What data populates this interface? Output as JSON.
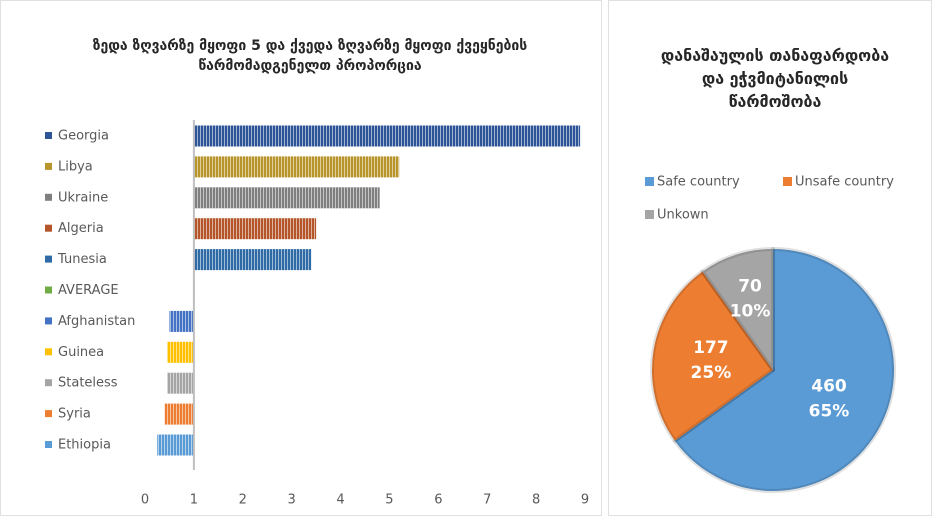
{
  "chart_data": [
    {
      "type": "hbar",
      "title": "ზედა ზღვარზე მყოფი 5 და ქვედა ზღვარზე მყოფი ქვეყნების წარმომადგენელთ პროპორცია",
      "categories": [
        "Georgia",
        "Libya",
        "Ukraine",
        "Algeria",
        "Tunesia",
        "AVERAGE",
        "Afghanistan",
        "Guinea",
        "Stateless",
        "Syria",
        "Ethiopia"
      ],
      "values": [
        8.9,
        5.2,
        4.8,
        3.5,
        3.4,
        1,
        0.5,
        0.45,
        0.45,
        0.4,
        0.25
      ],
      "colors": [
        "#2e5597",
        "#b8952a",
        "#7f7f7f",
        "#b5562a",
        "#2e6aa6",
        "#70ad47",
        "#4472c4",
        "#ffc000",
        "#a5a5a5",
        "#ed7d31",
        "#5b9bd5"
      ],
      "origin": 1,
      "xlim": [
        0,
        9
      ],
      "xticks": [
        0,
        1,
        2,
        3,
        4,
        5,
        6,
        7,
        8,
        9
      ]
    },
    {
      "type": "pie",
      "title": "დანაშაულის თანაფარდობა და ეჭვმიტანილის წარმოშობა",
      "categories": [
        "Safe country",
        "Unsafe country",
        "Unkown"
      ],
      "values": [
        460,
        177,
        70
      ],
      "percents": [
        65,
        25,
        10
      ],
      "value_labels": [
        "65%",
        "25%",
        "10%"
      ],
      "colors": [
        "#5b9bd5",
        "#ed7d31",
        "#a5a5a5"
      ]
    }
  ]
}
